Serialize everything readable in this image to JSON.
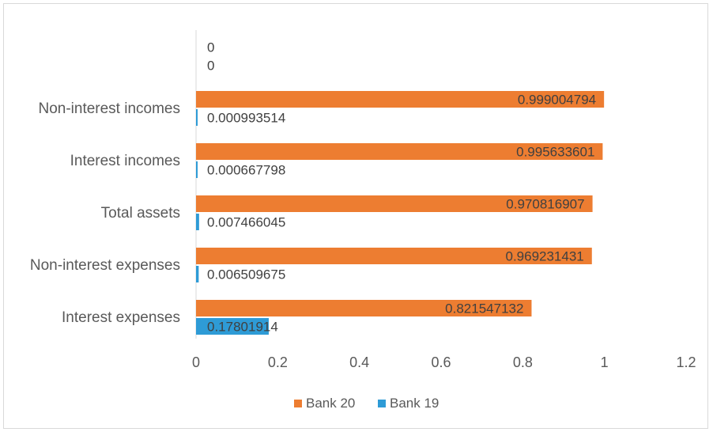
{
  "chart_data": {
    "type": "bar",
    "orientation": "horizontal",
    "categories": [
      "Interest expenses",
      "Non-interest expenses",
      "Total assets",
      "Interest incomes",
      "Non-interest incomes",
      ""
    ],
    "series": [
      {
        "name": "Bank 20",
        "color": "#ed7d31",
        "values": [
          0.821547132,
          0.969231431,
          0.970816907,
          0.995633601,
          0.999004794,
          0
        ],
        "labels": [
          "0.821547132",
          "0.969231431",
          "0.970816907",
          "0.995633601",
          "0.999004794",
          "0"
        ]
      },
      {
        "name": "Bank 19",
        "color": "#2e9bd6",
        "values": [
          0.17801914,
          0.006509675,
          0.007466045,
          0.000667798,
          0.000993514,
          0
        ],
        "labels": [
          "0.17801914",
          "0.006509675",
          "0.007466045",
          "0.000667798",
          "0.000993514",
          "0"
        ]
      }
    ],
    "x_ticks": [
      "0",
      "0.2",
      "0.4",
      "0.6",
      "0.8",
      "1",
      "1.2"
    ],
    "xlim": [
      0,
      1.2
    ],
    "grid": false,
    "legend_position": "bottom",
    "title": "",
    "xlabel": "",
    "ylabel": ""
  }
}
